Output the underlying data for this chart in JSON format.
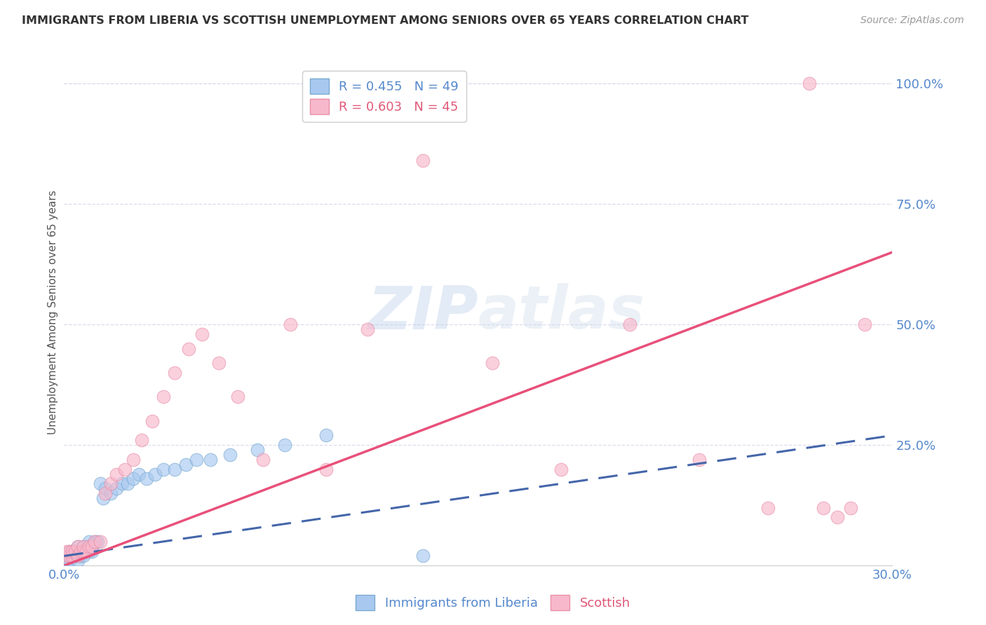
{
  "title": "IMMIGRANTS FROM LIBERIA VS SCOTTISH UNEMPLOYMENT AMONG SENIORS OVER 65 YEARS CORRELATION CHART",
  "source": "Source: ZipAtlas.com",
  "ylabel": "Unemployment Among Seniors over 65 years",
  "right_yticks": [
    "100.0%",
    "75.0%",
    "50.0%",
    "25.0%"
  ],
  "right_ytick_vals": [
    1.0,
    0.75,
    0.5,
    0.25
  ],
  "watermark_zip": "ZIP",
  "watermark_atlas": "atlas",
  "blue_color": "#a8c8f0",
  "blue_edge_color": "#7aaad0",
  "pink_color": "#f8b8cc",
  "pink_edge_color": "#e890a8",
  "blue_line_color": "#4466aa",
  "pink_line_color": "#e8507a",
  "legend_R1": "R = 0.455",
  "legend_N1": "N = 49",
  "legend_R2": "R = 0.603",
  "legend_N2": "N = 45",
  "legend_label1": "Immigrants from Liberia",
  "legend_label2": "Scottish",
  "legend_text_color1": "#5588cc",
  "legend_text_color2": "#e05878",
  "axis_tick_color": "#5588cc",
  "title_color": "#333333",
  "source_color": "#999999",
  "ylabel_color": "#555555",
  "xlim": [
    0.0,
    0.3
  ],
  "ylim": [
    0.0,
    1.05
  ],
  "blue_x": [
    0.001,
    0.001,
    0.002,
    0.002,
    0.002,
    0.002,
    0.003,
    0.003,
    0.003,
    0.004,
    0.004,
    0.004,
    0.005,
    0.005,
    0.005,
    0.005,
    0.006,
    0.006,
    0.007,
    0.007,
    0.008,
    0.008,
    0.009,
    0.009,
    0.01,
    0.01,
    0.011,
    0.012,
    0.013,
    0.014,
    0.015,
    0.017,
    0.019,
    0.021,
    0.023,
    0.025,
    0.027,
    0.03,
    0.033,
    0.036,
    0.04,
    0.044,
    0.048,
    0.053,
    0.06,
    0.07,
    0.08,
    0.095,
    0.13
  ],
  "blue_y": [
    0.01,
    0.02,
    0.01,
    0.02,
    0.03,
    0.02,
    0.02,
    0.03,
    0.02,
    0.02,
    0.03,
    0.02,
    0.01,
    0.03,
    0.02,
    0.04,
    0.02,
    0.03,
    0.02,
    0.04,
    0.03,
    0.04,
    0.03,
    0.05,
    0.04,
    0.03,
    0.05,
    0.05,
    0.17,
    0.14,
    0.16,
    0.15,
    0.16,
    0.17,
    0.17,
    0.18,
    0.19,
    0.18,
    0.19,
    0.2,
    0.2,
    0.21,
    0.22,
    0.22,
    0.23,
    0.24,
    0.25,
    0.27,
    0.02
  ],
  "pink_x": [
    0.001,
    0.001,
    0.002,
    0.002,
    0.003,
    0.003,
    0.004,
    0.005,
    0.005,
    0.006,
    0.007,
    0.007,
    0.008,
    0.009,
    0.01,
    0.011,
    0.013,
    0.015,
    0.017,
    0.019,
    0.022,
    0.025,
    0.028,
    0.032,
    0.036,
    0.04,
    0.045,
    0.05,
    0.056,
    0.063,
    0.072,
    0.082,
    0.095,
    0.11,
    0.13,
    0.155,
    0.18,
    0.205,
    0.23,
    0.255,
    0.27,
    0.275,
    0.28,
    0.285,
    0.29
  ],
  "pink_y": [
    0.02,
    0.03,
    0.02,
    0.03,
    0.02,
    0.03,
    0.03,
    0.02,
    0.04,
    0.03,
    0.03,
    0.04,
    0.03,
    0.04,
    0.04,
    0.05,
    0.05,
    0.15,
    0.17,
    0.19,
    0.2,
    0.22,
    0.26,
    0.3,
    0.35,
    0.4,
    0.45,
    0.48,
    0.42,
    0.35,
    0.22,
    0.5,
    0.2,
    0.49,
    0.84,
    0.42,
    0.2,
    0.5,
    0.22,
    0.12,
    1.0,
    0.12,
    0.1,
    0.12,
    0.5
  ],
  "blue_trend_x": [
    0.0,
    0.3
  ],
  "blue_trend_y": [
    0.02,
    0.27
  ],
  "pink_trend_x": [
    0.0,
    0.3
  ],
  "pink_trend_y": [
    0.0,
    0.65
  ],
  "figsize": [
    14.06,
    8.92
  ],
  "dpi": 100
}
